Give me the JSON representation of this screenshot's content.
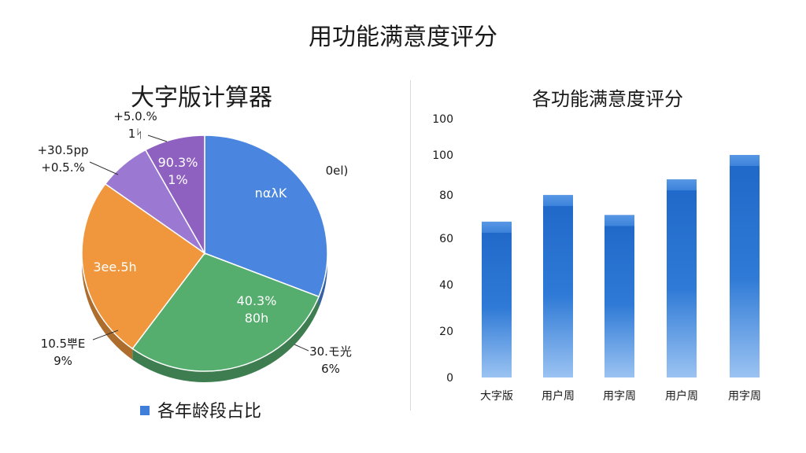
{
  "page": {
    "title": "用功能满意度评分"
  },
  "chart_data": [
    {
      "type": "pie",
      "title": "大字版计算器",
      "legend": {
        "label": "各年龄段占比",
        "color": "#3f7fd9",
        "placement": "bottom"
      },
      "slices": [
        {
          "value": 31,
          "color": "#4a86e0",
          "inner_label": "nαλΚ",
          "outer_label": "0el)"
        },
        {
          "value": 29,
          "color": "#55ad6e",
          "inner_label": [
            "40.3%",
            "80h"
          ],
          "outer_label": [
            "30.モ光",
            "6%"
          ]
        },
        {
          "value": 25,
          "color": "#f0973e",
          "inner_label": "3ee.5h",
          "outer_label": [
            "10.5뿌E",
            "9%"
          ]
        },
        {
          "value": 7,
          "color": "#9b79d2",
          "inner_label": "",
          "outer_label": [
            "+30.5pp",
            "+0.5.%"
          ]
        },
        {
          "value": 8,
          "color": "#8e60c0",
          "inner_label": [
            "90.3%",
            "1%"
          ],
          "outer_label": [
            "+5.0.%",
            "1ᛋ"
          ]
        }
      ]
    },
    {
      "type": "bar",
      "title": "各功能满意度评分",
      "categories": [
        "大字版",
        "用户周",
        "用字周",
        "用户周",
        "用字周"
      ],
      "values": [
        70,
        82,
        73,
        89,
        100
      ],
      "y_ticks": [
        "0",
        "20",
        "40",
        "60",
        "80",
        "100",
        "100"
      ],
      "ylim": [
        0,
        100
      ],
      "color": "#2f7ad6",
      "grid": false
    }
  ]
}
